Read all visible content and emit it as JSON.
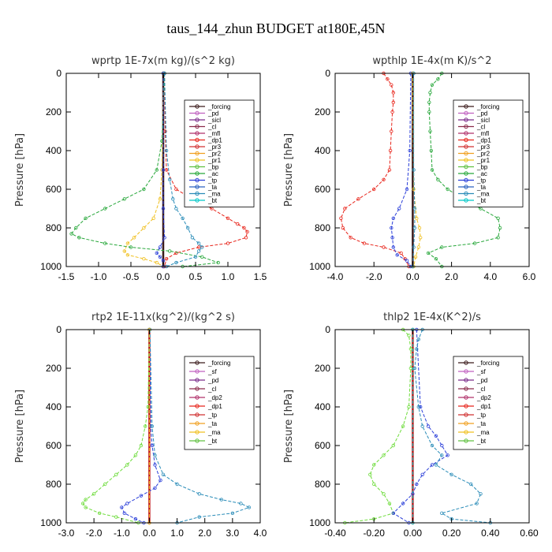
{
  "figure_title": "taus_144_zhun  BUDGET at180E,45N",
  "chart_data": [
    {
      "type": "line",
      "title": "wprtp  1E-7x(m kg)/(s^2 kg)",
      "ylabel": "Pressure [hPa]",
      "xlim": [
        -1.5,
        1.5
      ],
      "ylim": [
        1000,
        0
      ],
      "x_ticks": [
        "-1.5",
        "-1.0",
        "-0.5",
        "0.0",
        "0.5",
        "1.0",
        "1.5"
      ],
      "y_ticks": [
        "0",
        "200",
        "400",
        "600",
        "800",
        "1000"
      ],
      "legend": [
        "_forcing",
        "_pd",
        "_sicl",
        "_cl",
        "_mfl",
        "_dp1",
        "_pr3",
        "_pr2",
        "_pr1",
        "_bp",
        "_ac",
        "_tp",
        "_ta",
        "_ma",
        "_bt"
      ],
      "series": [
        {
          "name": "_forcing",
          "color": "#3a1a1a",
          "y": [
            0,
            1000
          ],
          "x": [
            0,
            0
          ]
        },
        {
          "name": "_dp1",
          "color": "#e8251b",
          "y": [
            0,
            300,
            500,
            600,
            650,
            700,
            750,
            780,
            800,
            820,
            850,
            880,
            900,
            930,
            960,
            1000
          ],
          "x": [
            0.02,
            0.03,
            0.05,
            0.2,
            0.45,
            0.75,
            1.0,
            1.15,
            1.25,
            1.3,
            1.28,
            1.0,
            0.55,
            0.2,
            0.05,
            0.02
          ]
        },
        {
          "name": "_pr1",
          "color": "#f0c020",
          "y": [
            0,
            500,
            650,
            750,
            800,
            850,
            880,
            920,
            940,
            960,
            980,
            1000
          ],
          "x": [
            0,
            -0.02,
            -0.05,
            -0.15,
            -0.3,
            -0.45,
            -0.55,
            -0.6,
            -0.55,
            -0.3,
            -0.1,
            0
          ]
        },
        {
          "name": "_ac",
          "color": "#27a73a",
          "y": [
            0,
            350,
            500,
            600,
            650,
            700,
            750,
            800,
            830,
            850,
            880,
            900,
            920,
            950,
            980,
            1000
          ],
          "x": [
            0.02,
            -0.02,
            -0.1,
            -0.3,
            -0.6,
            -0.9,
            -1.2,
            -1.35,
            -1.42,
            -1.3,
            -0.9,
            -0.5,
            0.1,
            0.6,
            0.85,
            0.3
          ]
        },
        {
          "name": "_tp",
          "color": "#2b3fd9",
          "y": [
            0,
            500,
            700,
            850,
            900,
            930,
            950,
            970,
            1000
          ],
          "x": [
            0,
            0,
            0,
            0.02,
            -0.05,
            -0.1,
            -0.05,
            0,
            0
          ]
        },
        {
          "name": "_ma",
          "color": "#2a8cb8",
          "y": [
            0,
            400,
            550,
            650,
            700,
            750,
            800,
            850,
            880,
            900,
            920,
            950,
            980,
            1000
          ],
          "x": [
            0.02,
            0.05,
            0.1,
            0.15,
            0.2,
            0.3,
            0.38,
            0.45,
            0.55,
            0.6,
            0.55,
            0.5,
            0.2,
            0.05
          ]
        }
      ]
    },
    {
      "type": "line",
      "title": "wpthlp  1E-4x(m K)/s^2",
      "ylabel": "Pressure [hPa]",
      "xlim": [
        -4.0,
        6.0
      ],
      "ylim": [
        1000,
        0
      ],
      "x_ticks": [
        "-4.0",
        "-2.0",
        "0.0",
        "2.0",
        "4.0",
        "6.0"
      ],
      "y_ticks": [
        "0",
        "200",
        "400",
        "600",
        "800",
        "1000"
      ],
      "legend": [
        "_forcing",
        "_pd",
        "_sicl",
        "_cl",
        "_mfl",
        "_dp1",
        "_pr3",
        "_pr2",
        "_pr1",
        "_bp",
        "_ac",
        "_tp",
        "_ta",
        "_ma",
        "_bt"
      ],
      "series": [
        {
          "name": "_forcing",
          "color": "#3a1a1a",
          "y": [
            0,
            1000
          ],
          "x": [
            0,
            0
          ]
        },
        {
          "name": "_dp1",
          "color": "#e8251b",
          "y": [
            0,
            30,
            60,
            100,
            150,
            200,
            300,
            400,
            500,
            550,
            600,
            650,
            700,
            750,
            800,
            850,
            880,
            900,
            930,
            960,
            1000
          ],
          "x": [
            -1.5,
            -1.3,
            -1.1,
            -1.0,
            -1.0,
            -1.05,
            -1.1,
            -1.15,
            -1.2,
            -1.5,
            -2.0,
            -2.8,
            -3.5,
            -3.7,
            -3.6,
            -3.2,
            -2.5,
            -1.5,
            -0.6,
            -0.4,
            -0.2
          ]
        },
        {
          "name": "_ac",
          "color": "#27a73a",
          "y": [
            0,
            30,
            60,
            100,
            150,
            200,
            300,
            400,
            500,
            550,
            600,
            650,
            700,
            750,
            800,
            850,
            880,
            900,
            930,
            960,
            1000
          ],
          "x": [
            1.5,
            1.3,
            1.0,
            0.9,
            0.85,
            0.85,
            0.9,
            0.95,
            1.0,
            1.3,
            1.8,
            2.6,
            3.5,
            4.4,
            4.5,
            4.4,
            3.2,
            1.5,
            0.8,
            1.2,
            1.5
          ]
        },
        {
          "name": "_tp",
          "color": "#2b3fd9",
          "y": [
            0,
            400,
            600,
            700,
            750,
            800,
            850,
            900,
            940,
            970,
            1000
          ],
          "x": [
            -0.1,
            -0.15,
            -0.3,
            -0.7,
            -1.0,
            -1.1,
            -1.05,
            -1.0,
            -0.8,
            -0.3,
            -0.1
          ]
        },
        {
          "name": "_pr1",
          "color": "#f0c020",
          "y": [
            0,
            600,
            750,
            800,
            850,
            900,
            950,
            1000
          ],
          "x": [
            0,
            0.05,
            0.2,
            0.35,
            0.4,
            0.3,
            0.15,
            0.05
          ]
        },
        {
          "name": "_ma",
          "color": "#2a8cb8",
          "y": [
            0,
            500,
            700,
            800,
            900,
            1000
          ],
          "x": [
            0.05,
            0.05,
            0.1,
            0.1,
            0.05,
            0
          ]
        }
      ]
    },
    {
      "type": "line",
      "title": "rtp2  1E-11x(kg^2)/(kg^2 s)",
      "ylabel": "Pressure [hPa]",
      "xlim": [
        -3.0,
        4.0
      ],
      "ylim": [
        1000,
        0
      ],
      "x_ticks": [
        "-3.0",
        "-2.0",
        "-1.0",
        "0.0",
        "1.0",
        "2.0",
        "3.0",
        "4.0"
      ],
      "y_ticks": [
        "0",
        "200",
        "400",
        "600",
        "800",
        "1000"
      ],
      "legend": [
        "_forcing",
        "_sf",
        "_pd",
        "_cl",
        "_dp2",
        "_dp1",
        "_tp",
        "_ta",
        "_ma",
        "_bt"
      ],
      "series": [
        {
          "name": "_forcing",
          "color": "#c0181a",
          "y": [
            0,
            1000
          ],
          "x": [
            0,
            0
          ]
        },
        {
          "name": "_dp1",
          "color": "#6ddc3a",
          "y": [
            0,
            400,
            500,
            600,
            650,
            700,
            750,
            800,
            850,
            880,
            900,
            920,
            950,
            970,
            1000
          ],
          "x": [
            0,
            -0.05,
            -0.15,
            -0.3,
            -0.5,
            -0.8,
            -1.2,
            -1.6,
            -2.0,
            -2.3,
            -2.4,
            -2.3,
            -1.8,
            -1.2,
            -0.4
          ]
        },
        {
          "name": "_tp",
          "color": "#2b3fd9",
          "y": [
            0,
            500,
            600,
            700,
            780,
            820,
            860,
            900,
            920,
            950,
            980,
            1000
          ],
          "x": [
            0,
            0.05,
            0.1,
            0.2,
            0.4,
            0.2,
            -0.3,
            -0.8,
            -1.0,
            -0.9,
            -0.5,
            -0.2
          ]
        },
        {
          "name": "_ta",
          "color": "#2a8cb8",
          "y": [
            0,
            500,
            650,
            750,
            800,
            850,
            880,
            900,
            920,
            950,
            970,
            1000
          ],
          "x": [
            0.02,
            0.1,
            0.2,
            0.5,
            1.0,
            1.8,
            2.6,
            3.3,
            3.6,
            3.0,
            1.8,
            1.0
          ]
        },
        {
          "name": "_cl",
          "color": "#f0c020",
          "y": [
            0,
            1000
          ],
          "x": [
            0,
            0
          ]
        }
      ]
    },
    {
      "type": "line",
      "title": "thlp2  1E-4x(K^2)/s",
      "ylabel": "Pressure [hPa]",
      "xlim": [
        -0.4,
        0.6
      ],
      "ylim": [
        1000,
        0
      ],
      "x_ticks": [
        "-0.40",
        "-0.20",
        "0.00",
        "0.20",
        "0.40",
        "0.60"
      ],
      "y_ticks": [
        "0",
        "200",
        "400",
        "600",
        "800",
        "1000"
      ],
      "legend": [
        "_forcing",
        "_sf",
        "_pd",
        "_cl",
        "_dp2",
        "_dp1",
        "_tp",
        "_ta",
        "_ma",
        "_bt"
      ],
      "series": [
        {
          "name": "_forcing",
          "color": "#c0181a",
          "y": [
            0,
            1000
          ],
          "x": [
            0,
            0
          ]
        },
        {
          "name": "_dp1",
          "color": "#6ddc3a",
          "y": [
            0,
            30,
            100,
            200,
            400,
            500,
            600,
            650,
            700,
            750,
            800,
            850,
            900,
            950,
            980,
            1000
          ],
          "x": [
            -0.05,
            -0.02,
            -0.01,
            -0.01,
            -0.02,
            -0.05,
            -0.1,
            -0.15,
            -0.2,
            -0.22,
            -0.2,
            -0.15,
            -0.12,
            -0.1,
            -0.2,
            -0.35
          ]
        },
        {
          "name": "_tp",
          "color": "#2b3fd9",
          "y": [
            0,
            400,
            500,
            550,
            600,
            650,
            700,
            750,
            800,
            850,
            900,
            950,
            1000
          ],
          "x": [
            0.02,
            0.04,
            0.08,
            0.12,
            0.15,
            0.18,
            0.1,
            0.05,
            0.02,
            0.0,
            -0.05,
            -0.1,
            -0.02
          ]
        },
        {
          "name": "_ta",
          "color": "#2a8cb8",
          "y": [
            0,
            50,
            100,
            200,
            400,
            500,
            600,
            650,
            700,
            750,
            800,
            850,
            900,
            950,
            980,
            1000
          ],
          "x": [
            0.05,
            0.03,
            0.02,
            0.01,
            0.03,
            0.05,
            0.1,
            0.15,
            0.12,
            0.2,
            0.3,
            0.35,
            0.33,
            0.15,
            0.2,
            0.4
          ]
        },
        {
          "name": "_ma",
          "color": "#00c8c8",
          "y": [
            0,
            1000
          ],
          "x": [
            0,
            0
          ]
        }
      ]
    }
  ]
}
